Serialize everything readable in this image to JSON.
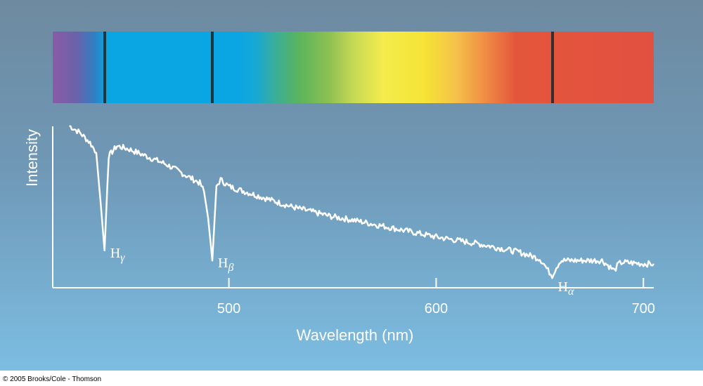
{
  "chart_data": {
    "type": "line",
    "xlabel": "Wavelength (nm)",
    "ylabel": "Intensity",
    "xlim": [
      415,
      705
    ],
    "ylim": [
      0,
      1
    ],
    "xticks": [
      500,
      600,
      700
    ],
    "grid": false,
    "line_color": "#ffffff",
    "series": [
      {
        "x": [
          423,
          428,
          433,
          436,
          438,
          440,
          442,
          446,
          452,
          460,
          470,
          480,
          486,
          488,
          490,
          492,
          494,
          496,
          500,
          510,
          520,
          530,
          540,
          550,
          560,
          580,
          600,
          620,
          640,
          650,
          652,
          654,
          656,
          658,
          660,
          670,
          680,
          684,
          686,
          688,
          690,
          700,
          705
        ],
        "values": [
          0.92,
          0.88,
          0.82,
          0.76,
          0.48,
          0.18,
          0.74,
          0.8,
          0.78,
          0.74,
          0.69,
          0.62,
          0.58,
          0.53,
          0.37,
          0.12,
          0.56,
          0.6,
          0.56,
          0.52,
          0.48,
          0.44,
          0.41,
          0.38,
          0.36,
          0.31,
          0.26,
          0.22,
          0.17,
          0.13,
          0.1,
          0.06,
          0.03,
          0.08,
          0.12,
          0.12,
          0.12,
          0.08,
          0.06,
          0.1,
          0.11,
          0.1,
          0.1
        ]
      }
    ],
    "annotations": [
      {
        "label": "H",
        "sub": "γ",
        "x": 440
      },
      {
        "label": "H",
        "sub": "β",
        "x": 492
      },
      {
        "label": "H",
        "sub": "α",
        "x": 656
      }
    ],
    "absorption_lines": [
      440,
      492,
      656
    ]
  },
  "copyright": "© 2005 Brooks/Cole - Thomson"
}
